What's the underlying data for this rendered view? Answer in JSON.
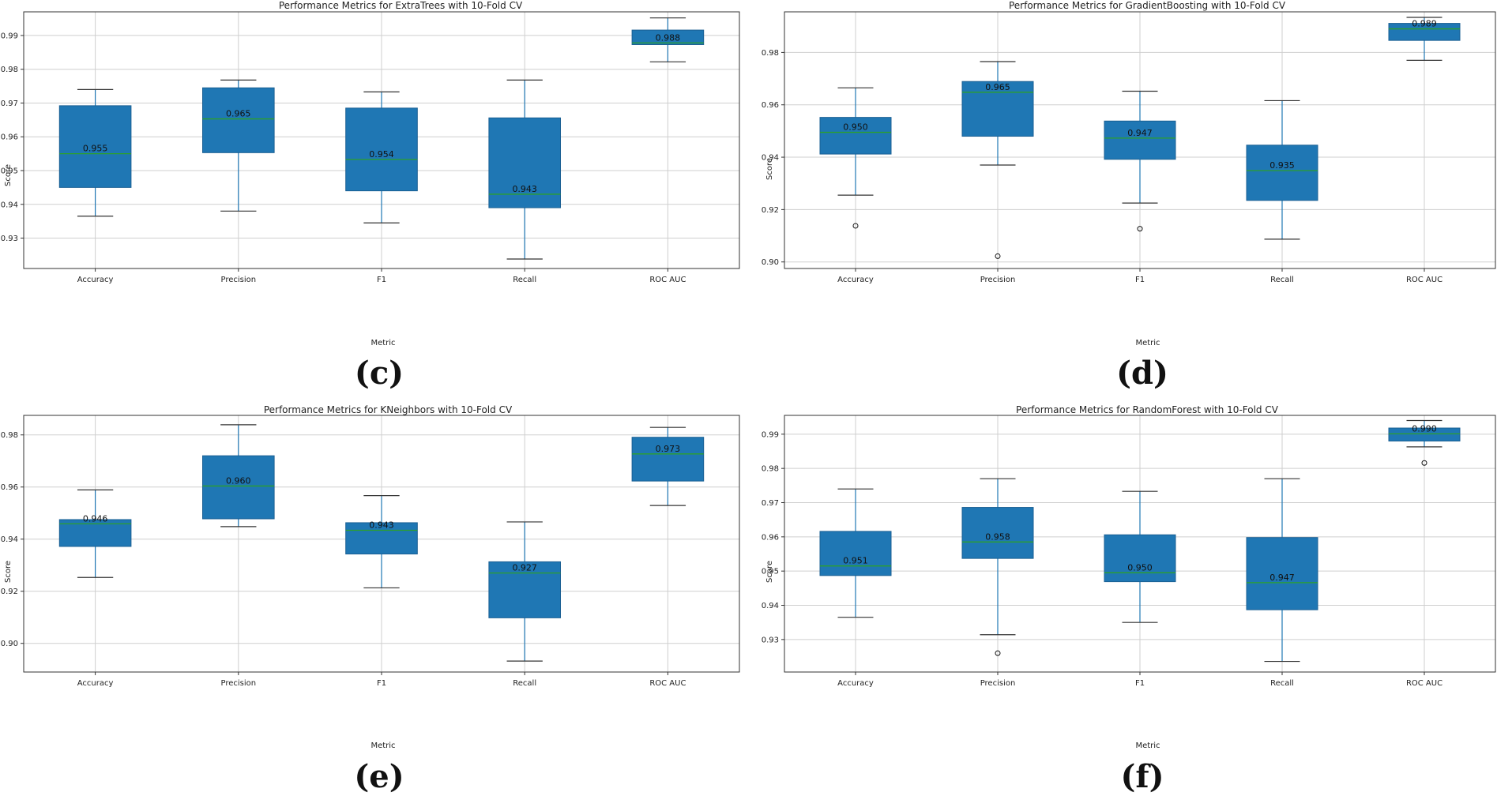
{
  "colors": {
    "box": "#1f77b4",
    "median": "#2ca02c",
    "grid": "#cfcfcf",
    "axis": "#333333",
    "text": "#222222"
  },
  "chart_data": [
    {
      "type": "boxplot",
      "caption": "(c)",
      "title": "Performance Metrics for ExtraTrees with 10-Fold CV",
      "xlabel": "Metric",
      "ylabel": "Score",
      "ylim": [
        0.921,
        0.997
      ],
      "yticks": [
        0.93,
        0.94,
        0.95,
        0.96,
        0.97,
        0.98,
        0.99
      ],
      "tick_decimals": 2,
      "categories": [
        "Accuracy",
        "Precision",
        "F1",
        "Recall",
        "ROC AUC"
      ],
      "boxes": [
        {
          "whisker_low": 0.9365,
          "q1": 0.945,
          "median": 0.955,
          "q3": 0.9692,
          "whisker_high": 0.974,
          "mean_label": "0.955",
          "outliers": []
        },
        {
          "whisker_low": 0.938,
          "q1": 0.9553,
          "median": 0.9653,
          "q3": 0.9745,
          "whisker_high": 0.9768,
          "mean_label": "0.965",
          "outliers": []
        },
        {
          "whisker_low": 0.9345,
          "q1": 0.944,
          "median": 0.9533,
          "q3": 0.9685,
          "whisker_high": 0.9733,
          "mean_label": "0.954",
          "outliers": []
        },
        {
          "whisker_low": 0.9238,
          "q1": 0.939,
          "median": 0.943,
          "q3": 0.9656,
          "whisker_high": 0.9768,
          "mean_label": "0.943",
          "outliers": []
        },
        {
          "whisker_low": 0.9822,
          "q1": 0.9873,
          "median": 0.9878,
          "q3": 0.9916,
          "whisker_high": 0.9952,
          "mean_label": "0.988",
          "outliers": []
        }
      ]
    },
    {
      "type": "boxplot",
      "caption": "(d)",
      "title": "Performance Metrics for GradientBoosting with 10-Fold CV",
      "xlabel": "Metric",
      "ylabel": "Score",
      "ylim": [
        0.8975,
        0.9955
      ],
      "yticks": [
        0.9,
        0.92,
        0.94,
        0.96,
        0.98
      ],
      "tick_decimals": 2,
      "categories": [
        "Accuracy",
        "Precision",
        "F1",
        "Recall",
        "ROC AUC"
      ],
      "boxes": [
        {
          "whisker_low": 0.9255,
          "q1": 0.9412,
          "median": 0.9495,
          "q3": 0.9552,
          "whisker_high": 0.9665,
          "mean_label": "0.950",
          "outliers": [
            0.9138
          ]
        },
        {
          "whisker_low": 0.937,
          "q1": 0.948,
          "median": 0.9648,
          "q3": 0.9689,
          "whisker_high": 0.9765,
          "mean_label": "0.965",
          "outliers": [
            0.9022
          ]
        },
        {
          "whisker_low": 0.9225,
          "q1": 0.9392,
          "median": 0.9473,
          "q3": 0.9538,
          "whisker_high": 0.9652,
          "mean_label": "0.947",
          "outliers": [
            0.9127
          ]
        },
        {
          "whisker_low": 0.9087,
          "q1": 0.9235,
          "median": 0.9349,
          "q3": 0.9446,
          "whisker_high": 0.9616,
          "mean_label": "0.935",
          "outliers": []
        },
        {
          "whisker_low": 0.977,
          "q1": 0.9846,
          "median": 0.989,
          "q3": 0.9911,
          "whisker_high": 0.9934,
          "mean_label": "0.989",
          "outliers": []
        }
      ]
    },
    {
      "type": "boxplot",
      "caption": "(e)",
      "title": "Performance Metrics for KNeighbors with 10-Fold CV",
      "xlabel": "Metric",
      "ylabel": "Score",
      "ylim": [
        0.889,
        0.9875
      ],
      "yticks": [
        0.9,
        0.92,
        0.94,
        0.96,
        0.98
      ],
      "tick_decimals": 2,
      "categories": [
        "Accuracy",
        "Precision",
        "F1",
        "Recall",
        "ROC AUC"
      ],
      "boxes": [
        {
          "whisker_low": 0.9253,
          "q1": 0.9372,
          "median": 0.9459,
          "q3": 0.9475,
          "whisker_high": 0.9589,
          "mean_label": "0.946",
          "outliers": []
        },
        {
          "whisker_low": 0.9448,
          "q1": 0.9478,
          "median": 0.9604,
          "q3": 0.972,
          "whisker_high": 0.9839,
          "mean_label": "0.960",
          "outliers": []
        },
        {
          "whisker_low": 0.9213,
          "q1": 0.9343,
          "median": 0.9434,
          "q3": 0.9463,
          "whisker_high": 0.9567,
          "mean_label": "0.943",
          "outliers": []
        },
        {
          "whisker_low": 0.8932,
          "q1": 0.9098,
          "median": 0.927,
          "q3": 0.9313,
          "whisker_high": 0.9466,
          "mean_label": "0.927",
          "outliers": []
        },
        {
          "whisker_low": 0.9529,
          "q1": 0.9623,
          "median": 0.9727,
          "q3": 0.9791,
          "whisker_high": 0.9829,
          "mean_label": "0.973",
          "outliers": []
        }
      ]
    },
    {
      "type": "boxplot",
      "caption": "(f)",
      "title": "Performance Metrics for RandomForest with 10-Fold CV",
      "xlabel": "Metric",
      "ylabel": "Score",
      "ylim": [
        0.9205,
        0.9955
      ],
      "yticks": [
        0.93,
        0.94,
        0.95,
        0.96,
        0.97,
        0.98,
        0.99
      ],
      "tick_decimals": 2,
      "categories": [
        "Accuracy",
        "Precision",
        "F1",
        "Recall",
        "ROC AUC"
      ],
      "boxes": [
        {
          "whisker_low": 0.9365,
          "q1": 0.9487,
          "median": 0.9515,
          "q3": 0.9616,
          "whisker_high": 0.974,
          "mean_label": "0.951",
          "outliers": []
        },
        {
          "whisker_low": 0.9314,
          "q1": 0.9537,
          "median": 0.9585,
          "q3": 0.9686,
          "whisker_high": 0.977,
          "mean_label": "0.958",
          "outliers": [
            0.926
          ]
        },
        {
          "whisker_low": 0.935,
          "q1": 0.9469,
          "median": 0.9495,
          "q3": 0.9606,
          "whisker_high": 0.9733,
          "mean_label": "0.950",
          "outliers": []
        },
        {
          "whisker_low": 0.9236,
          "q1": 0.9387,
          "median": 0.9466,
          "q3": 0.9598,
          "whisker_high": 0.977,
          "mean_label": "0.947",
          "outliers": []
        },
        {
          "whisker_low": 0.9863,
          "q1": 0.988,
          "median": 0.9901,
          "q3": 0.9918,
          "whisker_high": 0.994,
          "mean_label": "0.990",
          "outliers": [
            0.9816
          ]
        }
      ]
    }
  ]
}
